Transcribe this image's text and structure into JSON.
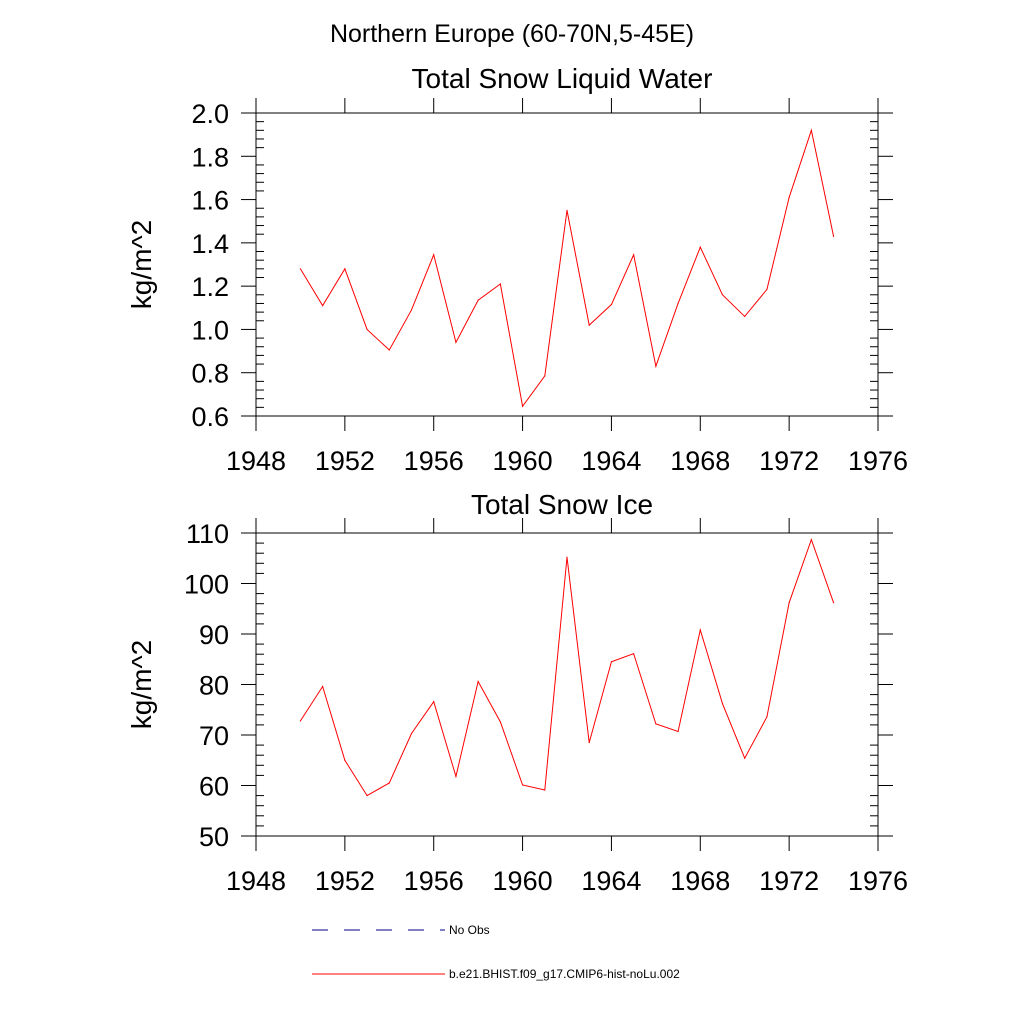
{
  "title": "Northern Europe (60-70N,5-45E)",
  "legend": {
    "entries": [
      {
        "label": "No Obs",
        "style": "dashed",
        "color": "#000080"
      },
      {
        "label": "b.e21.BHIST.f09_g17.CMIP6-hist-noLu.002",
        "style": "solid",
        "color": "#ff0000"
      }
    ]
  },
  "chart_data": [
    {
      "type": "line",
      "title": "Total Snow Liquid Water",
      "xlabel": "",
      "ylabel": "kg/m^2",
      "xlim": [
        1948,
        1976
      ],
      "ylim": [
        0.6,
        2.0
      ],
      "xticks": [
        1948,
        1952,
        1956,
        1960,
        1964,
        1968,
        1972,
        1976
      ],
      "xtick_labels": [
        "1948",
        "1952",
        "1956",
        "1960",
        "1964",
        "1968",
        "1972",
        "1976"
      ],
      "yticks": [
        0.6,
        0.8,
        1.0,
        1.2,
        1.4,
        1.6,
        1.8,
        2.0
      ],
      "ytick_labels": [
        "0.6",
        "0.8",
        "1.0",
        "1.2",
        "1.4",
        "1.6",
        "1.8",
        "2.0"
      ],
      "grid": false,
      "x": [
        1950,
        1951,
        1952,
        1953,
        1954,
        1955,
        1956,
        1957,
        1958,
        1959,
        1960,
        1961,
        1962,
        1963,
        1964,
        1965,
        1966,
        1967,
        1968,
        1969,
        1970,
        1971,
        1972,
        1973,
        1974
      ],
      "series": [
        {
          "color": "#ff0000",
          "values": [
            1.28,
            1.11,
            1.28,
            1.0,
            0.905,
            1.09,
            1.345,
            0.94,
            1.135,
            1.21,
            0.645,
            0.785,
            1.55,
            1.02,
            1.115,
            1.345,
            0.83,
            1.12,
            1.38,
            1.16,
            1.06,
            1.185,
            1.61,
            1.92,
            1.43
          ]
        }
      ]
    },
    {
      "type": "line",
      "title": "Total Snow Ice",
      "xlabel": "",
      "ylabel": "kg/m^2",
      "xlim": [
        1948,
        1976
      ],
      "ylim": [
        50,
        110
      ],
      "xticks": [
        1948,
        1952,
        1956,
        1960,
        1964,
        1968,
        1972,
        1976
      ],
      "xtick_labels": [
        "1948",
        "1952",
        "1956",
        "1960",
        "1964",
        "1968",
        "1972",
        "1976"
      ],
      "yticks": [
        50,
        60,
        70,
        80,
        90,
        100,
        110
      ],
      "ytick_labels": [
        "50",
        "60",
        "70",
        "80",
        "90",
        "100",
        "110"
      ],
      "grid": false,
      "x": [
        1950,
        1951,
        1952,
        1953,
        1954,
        1955,
        1956,
        1957,
        1958,
        1959,
        1960,
        1961,
        1962,
        1963,
        1964,
        1965,
        1966,
        1967,
        1968,
        1969,
        1970,
        1971,
        1972,
        1973,
        1974
      ],
      "series": [
        {
          "color": "#ff0000",
          "values": [
            72.8,
            79.6,
            65.0,
            58.0,
            60.5,
            70.3,
            76.6,
            61.8,
            80.6,
            72.6,
            60.1,
            59.1,
            105.2,
            68.5,
            84.5,
            86.1,
            72.2,
            70.7,
            90.8,
            76.2,
            65.4,
            73.6,
            96.2,
            108.7,
            96.2
          ]
        }
      ]
    }
  ]
}
